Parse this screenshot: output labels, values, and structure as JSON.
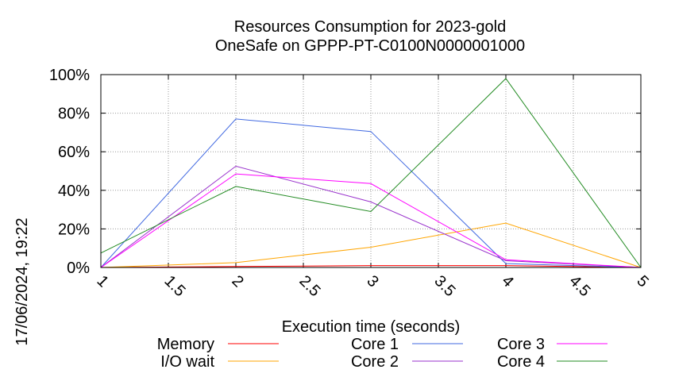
{
  "chart_data": {
    "type": "line",
    "title_line1": "Resources Consumption for 2023-gold",
    "title_line2": "OneSafe on GPPP-PT-C0100N0000001000",
    "xlabel": "Execution time (seconds)",
    "ylabel": "",
    "side_label": "17/06/2024, 19:22",
    "xlim": [
      1,
      5
    ],
    "ylim": [
      0,
      100
    ],
    "x_ticks": [
      "1",
      "1.5",
      "2",
      "2.5",
      "3",
      "3.5",
      "4",
      "4.5",
      "5"
    ],
    "y_ticks": [
      "0%",
      "20%",
      "40%",
      "60%",
      "80%",
      "100%"
    ],
    "grid": true,
    "legend_position": "bottom",
    "x": [
      1,
      2,
      3,
      4,
      5
    ],
    "series": [
      {
        "name": "Memory",
        "color": "#ff0000",
        "values": [
          0,
          0.5,
          1,
          1,
          0
        ]
      },
      {
        "name": "I/O wait",
        "color": "#ffa500",
        "values": [
          0,
          2.5,
          10.5,
          23,
          0
        ]
      },
      {
        "name": "Core 1",
        "color": "#4169e1",
        "values": [
          0,
          77,
          70.5,
          2,
          0
        ]
      },
      {
        "name": "Core 2",
        "color": "#9932cc",
        "values": [
          0,
          52.5,
          34,
          3.5,
          0
        ]
      },
      {
        "name": "Core 3",
        "color": "#ff00ff",
        "values": [
          0,
          48.5,
          43.5,
          4,
          0
        ]
      },
      {
        "name": "Core 4",
        "color": "#228b22",
        "values": [
          7.5,
          42,
          29,
          98,
          0
        ]
      }
    ]
  }
}
